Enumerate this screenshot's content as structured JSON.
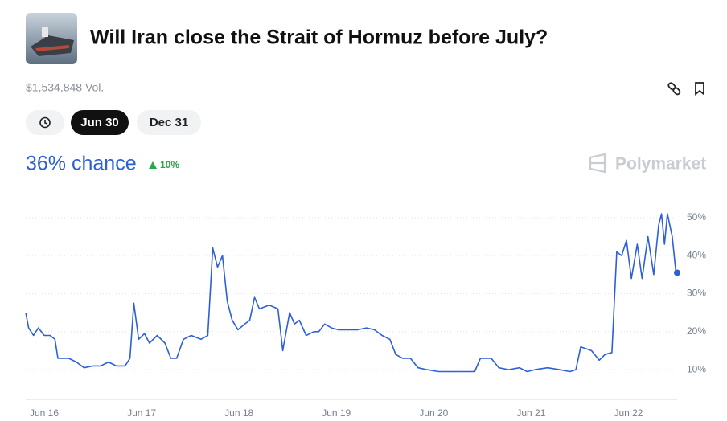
{
  "header": {
    "title": "Will Iran close the Strait of Hormuz before July?",
    "volume": "$1,534,848 Vol.",
    "tabs": [
      "Jun 30",
      "Dec 31"
    ],
    "chance": "36% chance",
    "change": "10%",
    "brand": "Polymarket"
  },
  "chart_data": {
    "type": "line",
    "x": [
      -0.19,
      -0.16,
      -0.11,
      -0.06,
      0,
      0.06,
      0.11,
      0.14,
      0.25,
      0.33,
      0.41,
      0.5,
      0.58,
      0.66,
      0.74,
      0.83,
      0.88,
      0.92,
      0.97,
      1.03,
      1.08,
      1.16,
      1.24,
      1.3,
      1.36,
      1.43,
      1.51,
      1.61,
      1.68,
      1.73,
      1.78,
      1.83,
      1.88,
      1.93,
      1.99,
      2.06,
      2.11,
      2.16,
      2.21,
      2.31,
      2.4,
      2.45,
      2.52,
      2.57,
      2.62,
      2.69,
      2.77,
      2.82,
      2.88,
      2.95,
      3.02,
      3.1,
      3.22,
      3.31,
      3.39,
      3.47,
      3.55,
      3.61,
      3.68,
      3.76,
      3.84,
      3.93,
      4.05,
      4.17,
      4.3,
      4.42,
      4.48,
      4.59,
      4.67,
      4.77,
      4.88,
      4.96,
      5.04,
      5.17,
      5.29,
      5.4,
      5.46,
      5.51,
      5.62,
      5.7,
      5.76,
      5.83,
      5.88,
      5.93,
      5.98,
      6.03,
      6.09,
      6.14,
      6.2,
      6.26,
      6.31,
      6.34,
      6.37,
      6.4,
      6.45,
      6.49,
      6.5
    ],
    "series": [
      {
        "color": "#2d5fd6",
        "values": [
          25,
          21,
          19,
          21,
          19,
          19,
          18,
          13,
          13,
          12,
          10.5,
          11,
          11,
          12,
          11,
          11,
          13,
          27.5,
          18,
          19.5,
          17,
          19,
          17,
          13,
          13,
          18,
          19,
          18,
          19,
          42,
          37,
          40,
          28,
          23,
          20.5,
          22,
          23,
          29,
          26,
          27,
          26,
          15,
          25,
          22,
          23,
          19,
          20,
          20,
          22,
          21,
          20.5,
          20.5,
          20.5,
          21,
          20.5,
          19,
          18,
          14,
          13,
          13,
          10.5,
          10,
          9.5,
          9.5,
          9.5,
          9.5,
          13,
          13,
          10.5,
          10,
          10.5,
          9.5,
          10,
          10.5,
          10,
          9.5,
          10,
          16,
          15,
          12.5,
          14,
          14.5,
          41,
          40,
          44,
          34,
          43,
          34,
          45,
          35,
          48,
          51,
          43,
          51,
          45,
          35,
          35.5
        ]
      }
    ],
    "xlim": [
      -0.19,
      6.5
    ],
    "xticks": [
      {
        "value": 0,
        "label": "Jun 16"
      },
      {
        "value": 1,
        "label": "Jun 17"
      },
      {
        "value": 2,
        "label": "Jun 18"
      },
      {
        "value": 3,
        "label": "Jun 19"
      },
      {
        "value": 4,
        "label": "Jun 20"
      },
      {
        "value": 5,
        "label": "Jun 21"
      },
      {
        "value": 6,
        "label": "Jun 22"
      }
    ],
    "ylim": [
      2.2,
      52.3
    ],
    "yticks": [
      {
        "value": 10,
        "label": "10%"
      },
      {
        "value": 20,
        "label": "20%"
      },
      {
        "value": 30,
        "label": "30%"
      },
      {
        "value": 40,
        "label": "40%"
      },
      {
        "value": 50,
        "label": "50%"
      }
    ],
    "grid": true
  }
}
